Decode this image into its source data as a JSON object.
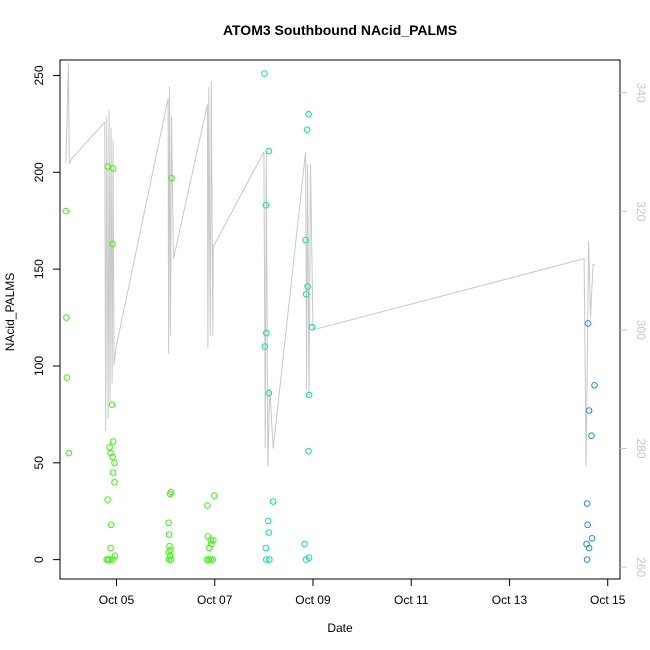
{
  "chart_data": {
    "type": "scatter",
    "title": "ATOM3 Southbound NAcid_PALMS",
    "xlabel": "Date",
    "ylabel": "NAcid_PALMS",
    "y2label": "",
    "x_unit": "day of October",
    "xlim": [
      3.85,
      15.25
    ],
    "ylim": [
      -10,
      258
    ],
    "y2lim": [
      258.0,
      345.5
    ],
    "x_ticks": [
      {
        "value": 5,
        "label": "Oct 05"
      },
      {
        "value": 7,
        "label": "Oct 07"
      },
      {
        "value": 9,
        "label": "Oct 09"
      },
      {
        "value": 11,
        "label": "Oct 11"
      },
      {
        "value": 13,
        "label": "Oct 13"
      },
      {
        "value": 15,
        "label": "Oct 15"
      }
    ],
    "y_ticks": [
      0,
      50,
      100,
      150,
      200,
      250
    ],
    "y2_ticks": [
      260,
      280,
      300,
      320,
      340
    ],
    "grid": false,
    "colors": {
      "green": "#33ff00",
      "teal": "#00e5a8",
      "blue": "#1e90e6",
      "line": "#c8c8c8",
      "right_axis": "#c8c8c8"
    },
    "series": [
      {
        "color_key": "green",
        "points": [
          [
            3.97,
            180
          ],
          [
            3.98,
            125
          ],
          [
            3.99,
            94
          ],
          [
            4.03,
            55
          ],
          [
            4.82,
            203
          ],
          [
            4.93,
            202
          ],
          [
            4.92,
            163
          ],
          [
            4.91,
            80
          ],
          [
            4.93,
            61
          ],
          [
            4.86,
            58
          ],
          [
            4.88,
            55
          ],
          [
            4.92,
            53
          ],
          [
            4.96,
            50
          ],
          [
            4.93,
            45
          ],
          [
            4.96,
            40
          ],
          [
            4.82,
            31
          ],
          [
            4.89,
            18
          ],
          [
            4.88,
            6
          ],
          [
            4.97,
            2
          ],
          [
            4.8,
            0
          ],
          [
            4.83,
            0
          ],
          [
            4.86,
            0
          ],
          [
            4.92,
            0
          ],
          [
            6.12,
            197
          ],
          [
            6.11,
            35
          ],
          [
            6.09,
            34
          ],
          [
            6.06,
            19
          ],
          [
            6.07,
            13
          ],
          [
            6.08,
            7
          ],
          [
            6.1,
            5
          ],
          [
            6.06,
            4
          ],
          [
            6.09,
            2
          ],
          [
            6.07,
            0
          ],
          [
            6.11,
            0
          ],
          [
            6.85,
            28
          ],
          [
            6.99,
            33
          ],
          [
            6.86,
            12
          ],
          [
            6.97,
            10
          ],
          [
            6.92,
            10
          ],
          [
            6.93,
            8
          ],
          [
            6.89,
            6
          ],
          [
            6.84,
            0
          ],
          [
            6.88,
            0
          ],
          [
            6.92,
            0
          ],
          [
            6.96,
            0
          ]
        ]
      },
      {
        "color_key": "teal",
        "points": [
          [
            8.01,
            251
          ],
          [
            8.1,
            211
          ],
          [
            8.04,
            183
          ],
          [
            8.05,
            117
          ],
          [
            8.02,
            110
          ],
          [
            8.1,
            86
          ],
          [
            8.19,
            30
          ],
          [
            8.09,
            20
          ],
          [
            8.1,
            14
          ],
          [
            8.04,
            6
          ],
          [
            8.05,
            0
          ],
          [
            8.11,
            0
          ],
          [
            8.91,
            230
          ],
          [
            8.88,
            222
          ],
          [
            8.85,
            165
          ],
          [
            8.89,
            141
          ],
          [
            8.86,
            137
          ],
          [
            8.98,
            120
          ],
          [
            8.92,
            85
          ],
          [
            8.91,
            56
          ],
          [
            8.83,
            8
          ],
          [
            8.92,
            1
          ],
          [
            8.86,
            0
          ]
        ]
      },
      {
        "color_key": "blue",
        "points": [
          [
            14.6,
            122
          ],
          [
            14.73,
            90
          ],
          [
            14.62,
            77
          ],
          [
            14.67,
            64
          ],
          [
            14.58,
            29
          ],
          [
            14.59,
            18
          ],
          [
            14.68,
            11
          ],
          [
            14.57,
            8
          ],
          [
            14.62,
            6
          ],
          [
            14.58,
            0
          ]
        ]
      }
    ],
    "overlay_line": {
      "color_key": "line",
      "axis": "right",
      "points": [
        [
          3.97,
          328
        ],
        [
          4.02,
          345
        ],
        [
          4.04,
          328
        ],
        [
          4.1,
          329
        ],
        [
          4.76,
          335
        ],
        [
          4.78,
          283
        ],
        [
          4.8,
          336
        ],
        [
          4.83,
          285
        ],
        [
          4.85,
          337
        ],
        [
          4.87,
          288
        ],
        [
          4.89,
          334
        ],
        [
          4.91,
          291
        ],
        [
          4.93,
          332
        ],
        [
          4.95,
          294
        ],
        [
          4.99,
          297
        ],
        [
          6.05,
          339
        ],
        [
          6.06,
          296
        ],
        [
          6.08,
          341
        ],
        [
          6.1,
          299
        ],
        [
          6.12,
          336
        ],
        [
          6.16,
          312
        ],
        [
          6.85,
          338
        ],
        [
          6.86,
          297
        ],
        [
          6.88,
          341
        ],
        [
          6.91,
          299
        ],
        [
          6.93,
          342
        ],
        [
          6.96,
          299
        ],
        [
          6.97,
          314
        ],
        [
          8.0,
          330
        ],
        [
          8.03,
          280
        ],
        [
          8.05,
          330
        ],
        [
          8.08,
          277
        ],
        [
          8.12,
          290
        ],
        [
          8.19,
          280
        ],
        [
          8.85,
          330
        ],
        [
          8.87,
          290
        ],
        [
          8.89,
          328
        ],
        [
          8.92,
          289
        ],
        [
          8.95,
          328
        ],
        [
          9.0,
          300
        ],
        [
          14.52,
          312
        ],
        [
          14.56,
          277
        ],
        [
          14.61,
          315
        ],
        [
          14.65,
          302
        ],
        [
          14.7,
          311
        ],
        [
          14.74,
          311
        ]
      ]
    }
  }
}
